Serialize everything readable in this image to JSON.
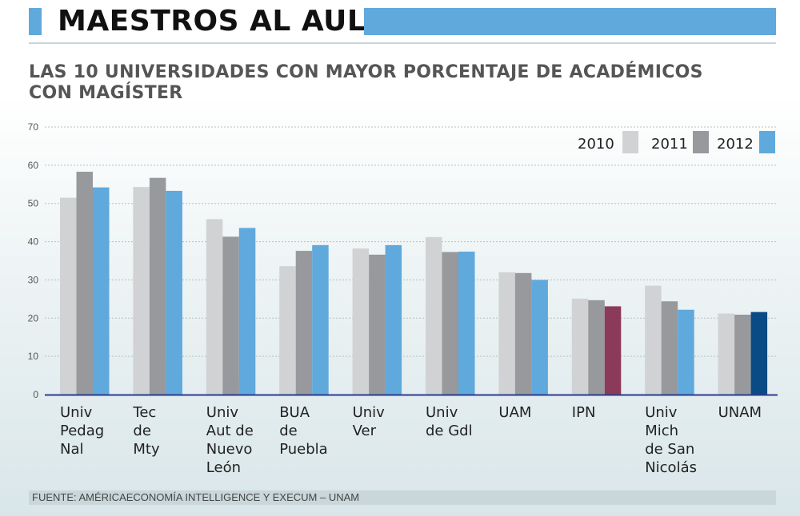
{
  "header": {
    "title": "MAESTROS AL AULA",
    "subtitle_line1": "LAS 10 UNIVERSIDADES CON MAYOR PORCENTAJE DE ACADÉMICOS",
    "subtitle_line2": "CON MAGÍSTER"
  },
  "footer": {
    "source": "FUENTE: AMÉRICAECONOMÍA INTELLIGENCE Y EXECUM – UNAM"
  },
  "colors": {
    "accent": "#5fa9dc",
    "s2010": "#d1d2d4",
    "s2011": "#97999c",
    "s2012": "#5fa9dc",
    "ipn_2012": "#8c3a59",
    "unam_2012": "#0a4a85",
    "axis": "#2b3b8f"
  },
  "chart_data": {
    "type": "bar",
    "title": "LAS 10 UNIVERSIDADES CON MAYOR PORCENTAJE DE ACADÉMICOS CON MAGÍSTER",
    "ylim": [
      0,
      70
    ],
    "yticks": [
      0,
      10,
      20,
      30,
      40,
      50,
      60,
      70
    ],
    "grid": true,
    "legend_position": "top-right",
    "categories": [
      [
        "Univ",
        "Pedag",
        "Nal"
      ],
      [
        "Tec",
        "de",
        "Mty"
      ],
      [
        "Univ",
        "Aut de",
        "Nuevo",
        "León"
      ],
      [
        "BUA",
        "de",
        "Puebla"
      ],
      [
        "Univ",
        "Ver"
      ],
      [
        "Univ",
        "de Gdl"
      ],
      [
        "UAM"
      ],
      [
        "IPN"
      ],
      [
        "Univ",
        "Mich",
        "de San",
        "Nicolás"
      ],
      [
        "UNAM"
      ]
    ],
    "series": [
      {
        "name": "2010",
        "values": [
          51.5,
          54.3,
          45.9,
          33.6,
          38.2,
          41.2,
          32.0,
          25.1,
          28.5,
          21.2
        ]
      },
      {
        "name": "2011",
        "values": [
          58.3,
          56.7,
          41.3,
          37.6,
          36.6,
          37.3,
          31.8,
          24.7,
          24.4,
          20.9
        ]
      },
      {
        "name": "2012",
        "values": [
          54.2,
          53.3,
          43.6,
          39.1,
          39.1,
          37.4,
          30.0,
          23.1,
          22.2,
          21.6
        ]
      }
    ]
  }
}
